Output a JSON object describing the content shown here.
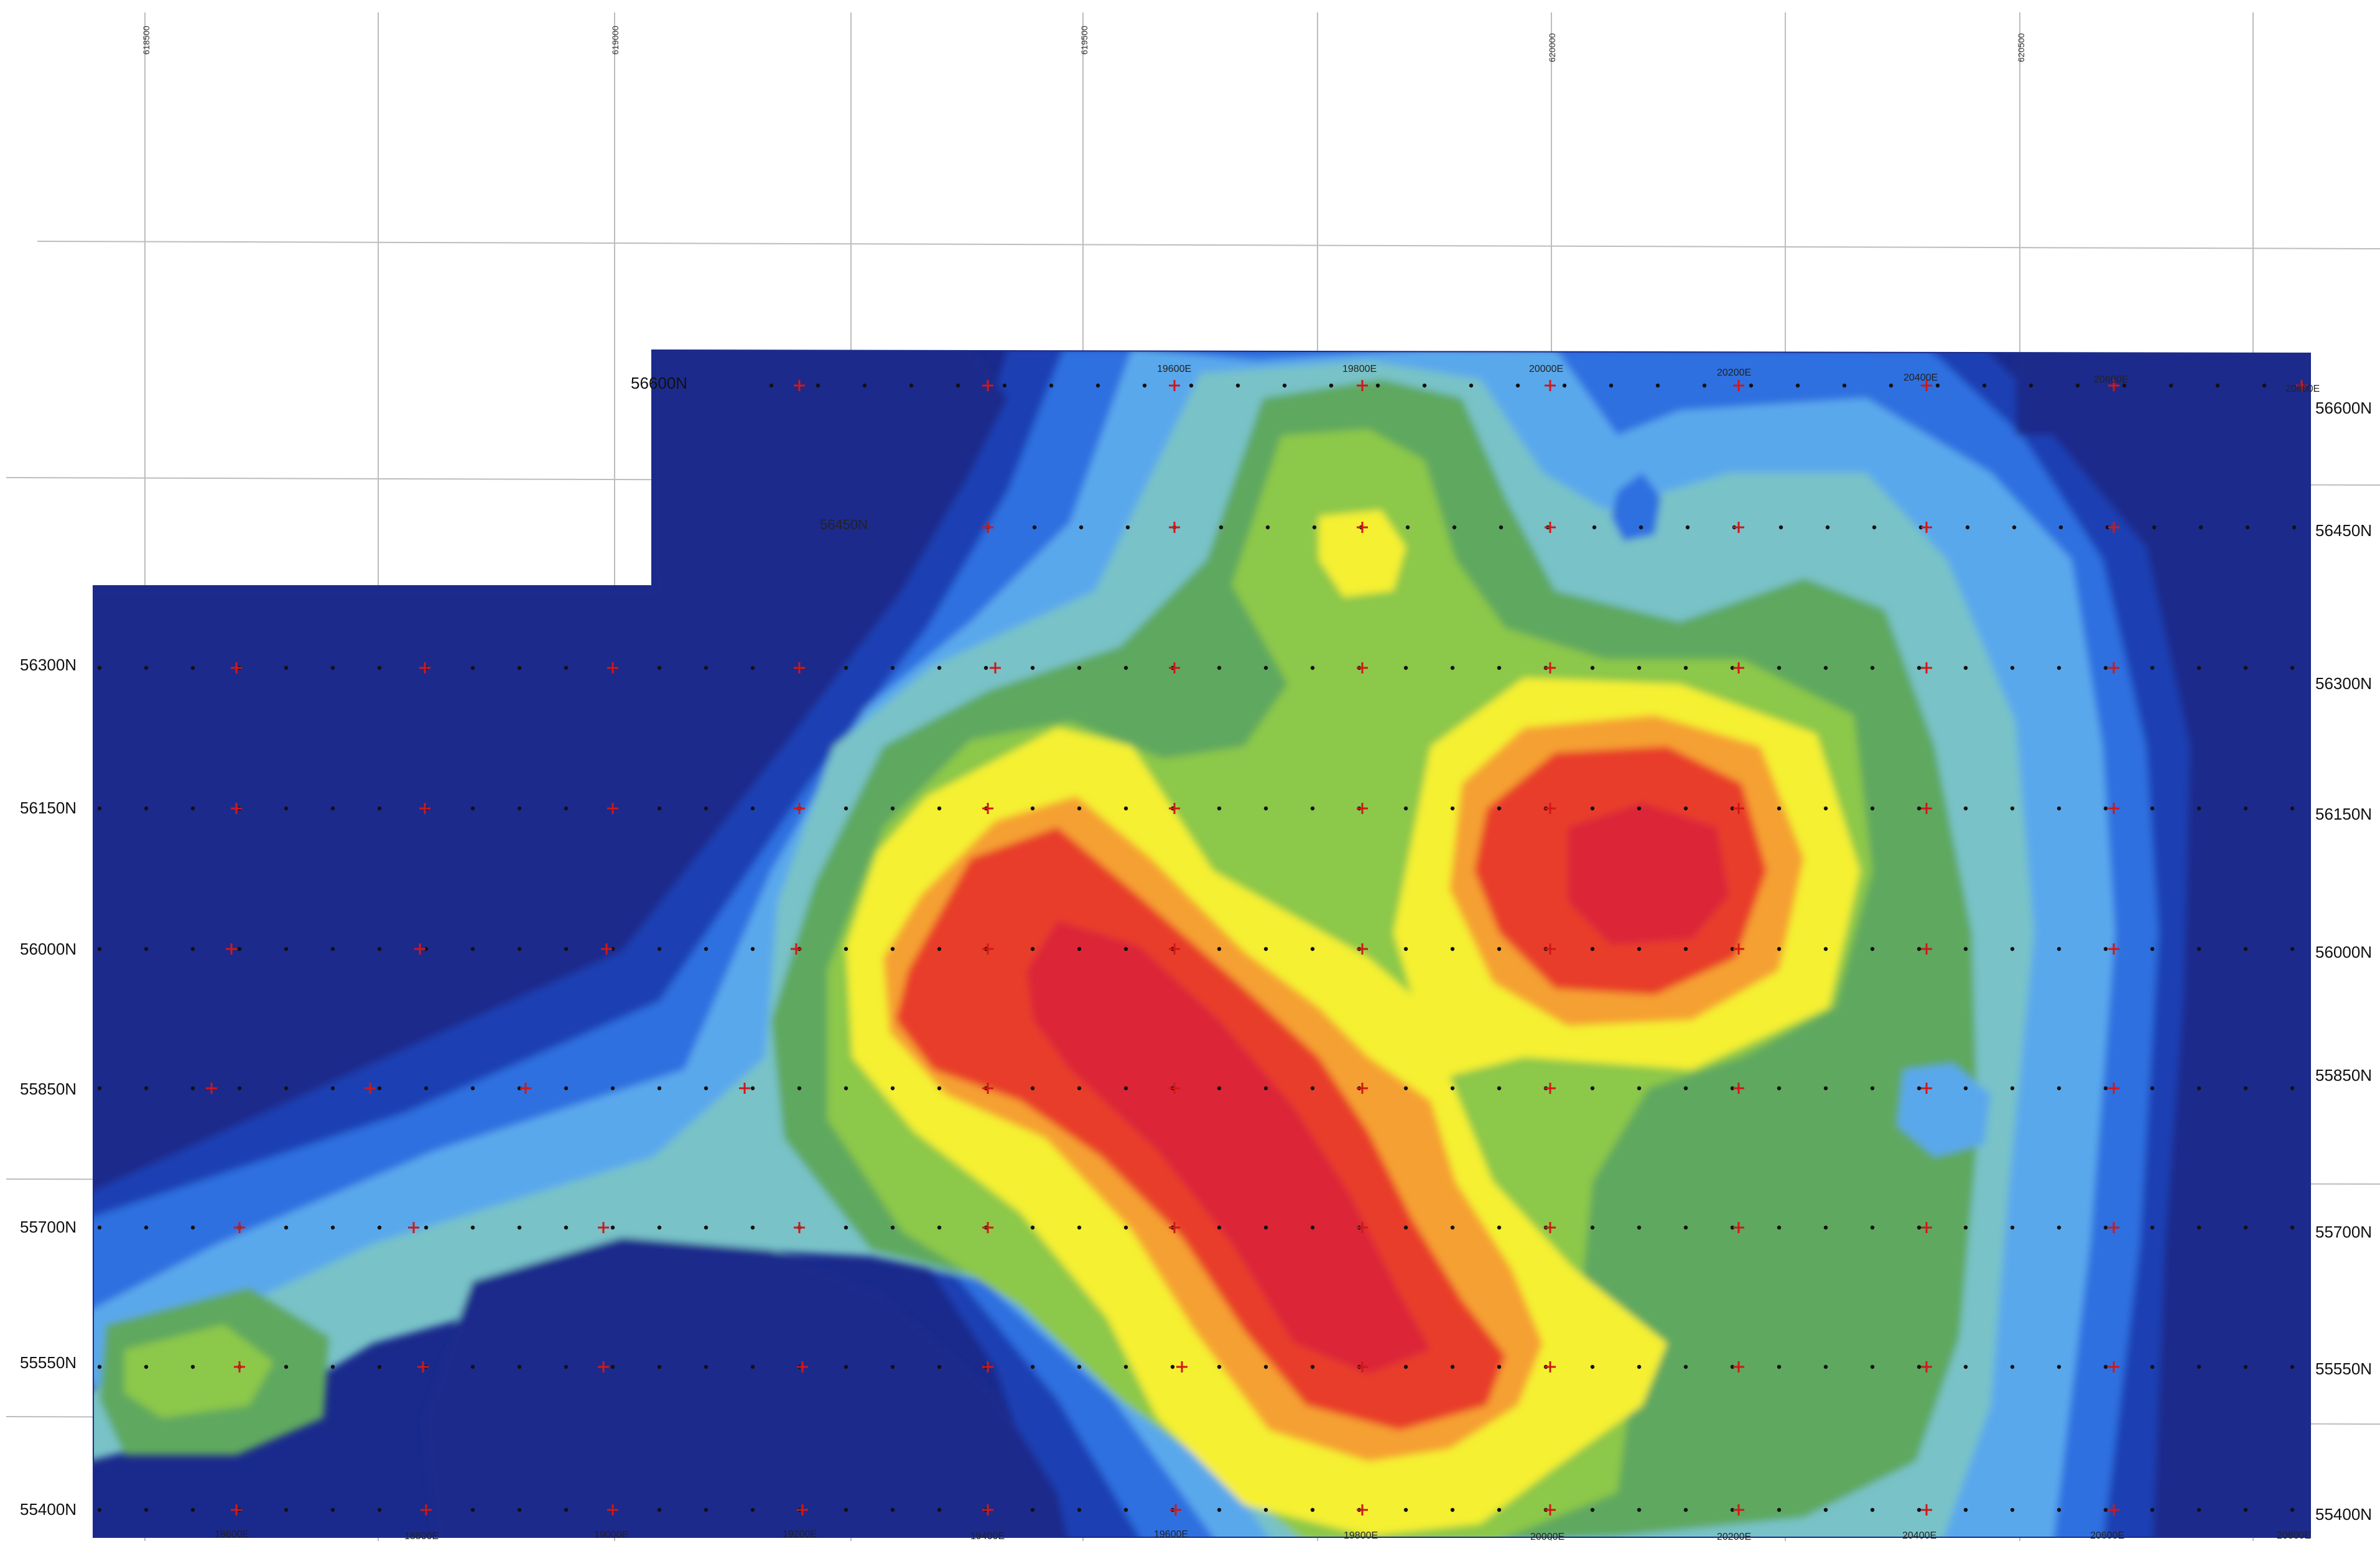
{
  "map": {
    "utm_easting_labels": [
      "618500",
      "619000",
      "619500",
      "620000",
      "620500"
    ],
    "grid_easting_labels_top": [
      "19600E",
      "19800E",
      "20000E",
      "20200E",
      "20400E",
      "20600E",
      "20800E"
    ],
    "grid_easting_labels_bottom": [
      "18600E",
      "18800E",
      "19000E",
      "19200E",
      "19400E",
      "19600E",
      "19800E",
      "20000E",
      "20200E",
      "20400E",
      "20600E",
      "20800E"
    ],
    "northing_labels_left": [
      "56300N",
      "56150N",
      "56000N",
      "55850N",
      "55700N",
      "55550N",
      "55400N"
    ],
    "northing_labels_right": [
      "56600N",
      "56450N",
      "56300N",
      "56150N",
      "56000N",
      "55850N",
      "55700N",
      "55550N",
      "55400N"
    ],
    "line_label_top": "56600N",
    "line_label_inner": "56450N",
    "palette": [
      "#1a2a8c",
      "#1f3fb4",
      "#2f6fe0",
      "#5aa8ec",
      "#78c2c8",
      "#5fa85e",
      "#8cc848",
      "#f5f032",
      "#f5a030",
      "#e83c2c",
      "#dc2838"
    ],
    "stations_note": "+"
  }
}
